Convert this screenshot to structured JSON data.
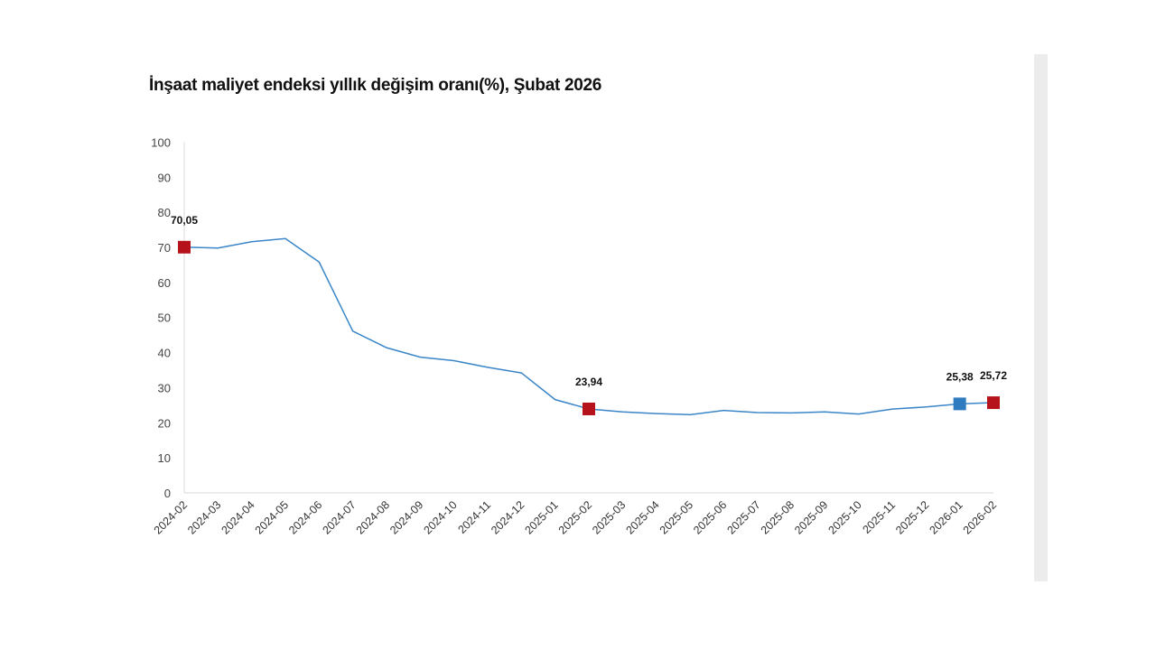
{
  "chart_data": {
    "type": "line",
    "title": "İnşaat maliyet endeksi yıllık değişim oranı(%), Şubat 2026",
    "xlabel": "",
    "ylabel": "",
    "ylim": [
      0,
      100
    ],
    "yticks": [
      0,
      10,
      20,
      30,
      40,
      50,
      60,
      70,
      80,
      90,
      100
    ],
    "grid": false,
    "categories": [
      "2024-02",
      "2024-03",
      "2024-04",
      "2024-05",
      "2024-06",
      "2024-07",
      "2024-08",
      "2024-09",
      "2024-10",
      "2024-11",
      "2024-12",
      "2025-01",
      "2025-02",
      "2025-03",
      "2025-04",
      "2025-05",
      "2025-06",
      "2025-07",
      "2025-08",
      "2025-09",
      "2025-10",
      "2025-11",
      "2025-12",
      "2026-01",
      "2026-02"
    ],
    "series": [
      {
        "name": "Yıllık değişim oranı",
        "color": "#3a86c8",
        "values": [
          70.05,
          69.8,
          71.6,
          72.5,
          65.8,
          46.1,
          41.4,
          38.7,
          37.7,
          35.8,
          34.2,
          26.6,
          23.94,
          23.1,
          22.6,
          22.3,
          23.5,
          22.9,
          22.8,
          23.1,
          22.5,
          23.9,
          24.5,
          25.38,
          25.72
        ]
      }
    ],
    "highlighted_points": [
      {
        "index": 0,
        "label": "70,05",
        "color": "#b5121b"
      },
      {
        "index": 12,
        "label": "23,94",
        "color": "#b5121b"
      },
      {
        "index": 23,
        "label": "25,38",
        "color": "#2e7bbf"
      },
      {
        "index": 24,
        "label": "25,72",
        "color": "#b5121b"
      }
    ]
  }
}
